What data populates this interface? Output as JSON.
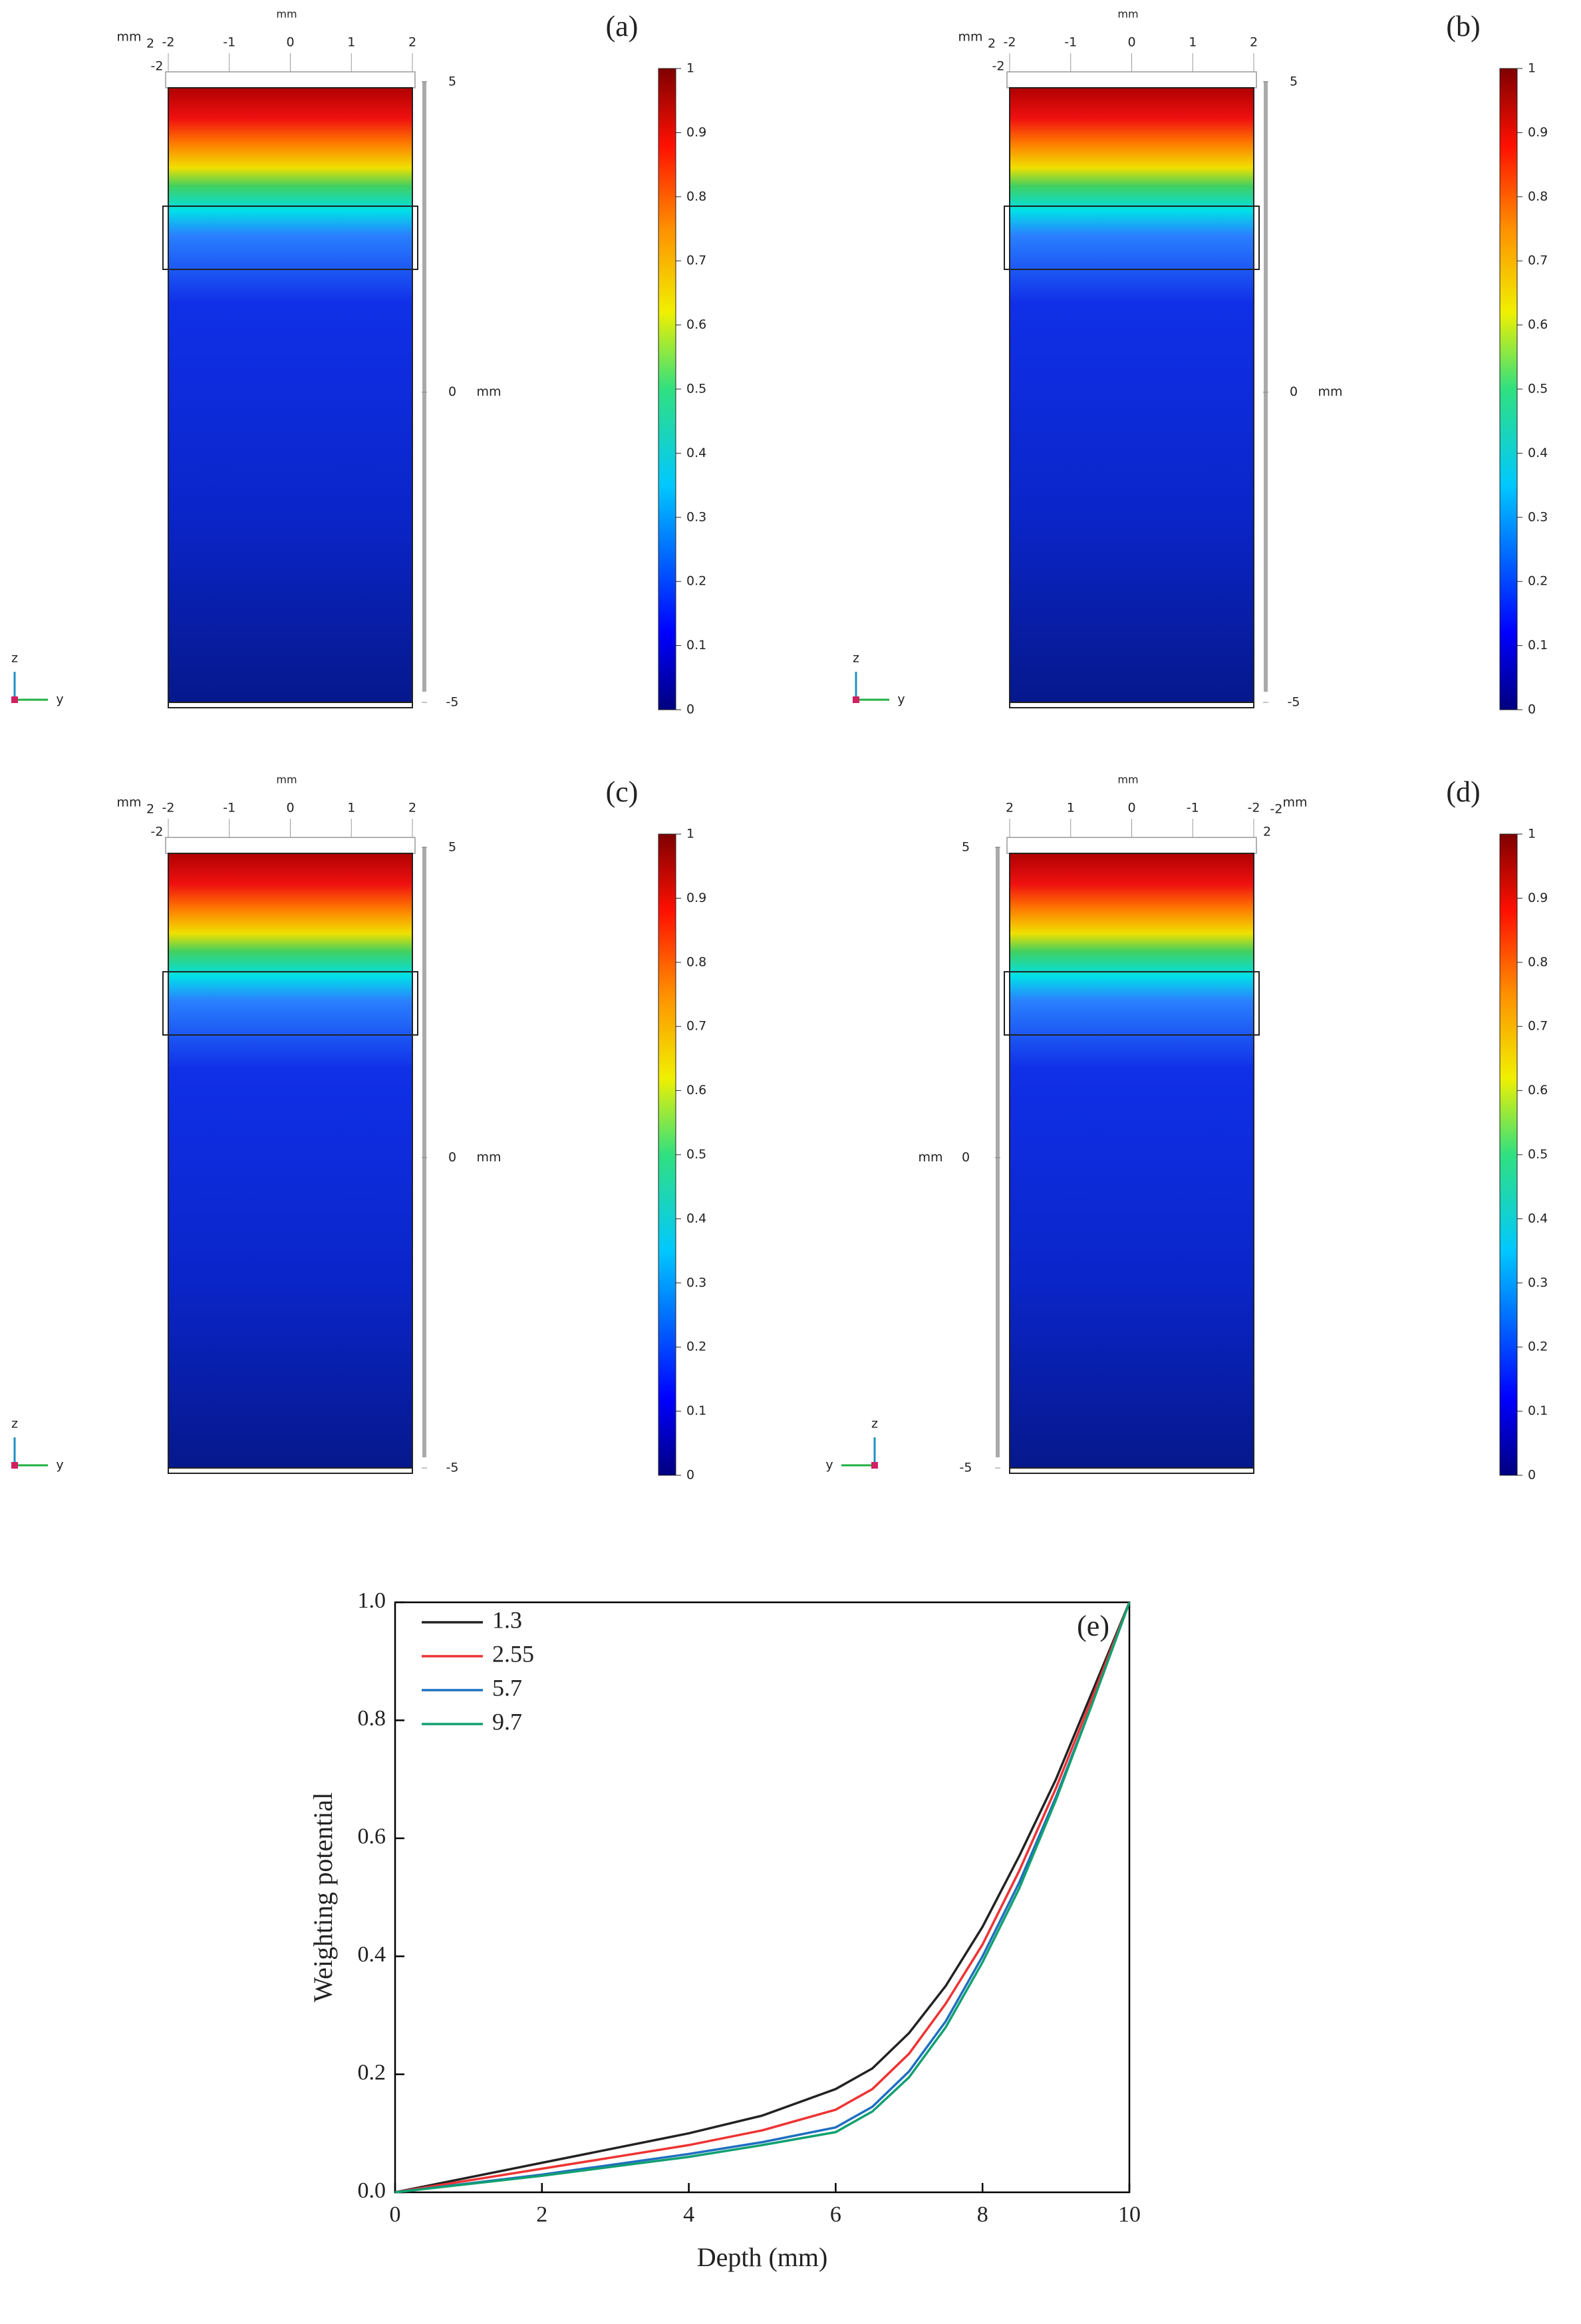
{
  "panels": [
    {
      "label": "(a)",
      "x_unit": "mm",
      "xlim": [
        -2,
        2
      ],
      "xticks": [
        -2,
        -1,
        0,
        1,
        2
      ],
      "corner": [
        "mm",
        2,
        -2
      ],
      "zlim": [
        -5,
        5
      ],
      "zticks": [
        -5,
        0,
        5
      ],
      "z_unit": "mm",
      "z_side": "right",
      "triad": [
        "z",
        "y"
      ],
      "colorbar": {
        "lim": [
          0,
          1
        ],
        "ticks": [
          0,
          0.1,
          0.2,
          0.3,
          0.4,
          0.5,
          0.6,
          0.7,
          0.8,
          0.9,
          1
        ]
      }
    },
    {
      "label": "(b)",
      "x_unit": "mm",
      "xlim": [
        -2,
        2
      ],
      "xticks": [
        -2,
        -1,
        0,
        1,
        2
      ],
      "corner": [
        "mm",
        2,
        -2
      ],
      "zlim": [
        -5,
        5
      ],
      "zticks": [
        -5,
        0,
        5
      ],
      "z_unit": "mm",
      "z_side": "right",
      "triad": [
        "z",
        "y"
      ],
      "colorbar": {
        "lim": [
          0,
          1
        ],
        "ticks": [
          0,
          0.1,
          0.2,
          0.3,
          0.4,
          0.5,
          0.6,
          0.7,
          0.8,
          0.9,
          1
        ]
      }
    },
    {
      "label": "(c)",
      "x_unit": "mm",
      "xlim": [
        -2,
        2
      ],
      "xticks": [
        -2,
        -1,
        0,
        1,
        2
      ],
      "corner": [
        "mm",
        2,
        -2
      ],
      "zlim": [
        -5,
        5
      ],
      "zticks": [
        -5,
        0,
        5
      ],
      "z_unit": "mm",
      "z_side": "right",
      "triad": [
        "z",
        "y"
      ],
      "colorbar": {
        "lim": [
          0,
          1
        ],
        "ticks": [
          0,
          0.1,
          0.2,
          0.3,
          0.4,
          0.5,
          0.6,
          0.7,
          0.8,
          0.9,
          1
        ]
      }
    },
    {
      "label": "(d)",
      "x_unit": "mm",
      "xlim": [
        2,
        -2
      ],
      "xticks": [
        2,
        1,
        0,
        -1,
        -2
      ],
      "corner": [
        "mm",
        -2,
        2
      ],
      "zlim": [
        -5,
        5
      ],
      "zticks": [
        -5,
        0,
        5
      ],
      "z_unit": "mm",
      "z_side": "left",
      "triad": [
        "z",
        "y"
      ],
      "colorbar": {
        "lim": [
          0,
          1
        ],
        "ticks": [
          0,
          0.1,
          0.2,
          0.3,
          0.4,
          0.5,
          0.6,
          0.7,
          0.8,
          0.9,
          1
        ]
      }
    }
  ],
  "chart_data": {
    "type": "line",
    "annotation": "(e)",
    "x_label": "Depth (mm)",
    "y_label": "Weighting potential",
    "x": [
      0,
      2,
      4,
      5,
      6,
      6.5,
      7,
      7.5,
      8,
      8.5,
      9,
      9.5,
      10
    ],
    "series": [
      {
        "name": "1.3",
        "color": "#222222",
        "values": [
          0,
          0.05,
          0.1,
          0.13,
          0.175,
          0.21,
          0.27,
          0.35,
          0.45,
          0.57,
          0.7,
          0.85,
          1
        ]
      },
      {
        "name": "2.55",
        "color": "#ee3333",
        "values": [
          0,
          0.04,
          0.08,
          0.105,
          0.14,
          0.175,
          0.235,
          0.32,
          0.42,
          0.545,
          0.685,
          0.84,
          1
        ]
      },
      {
        "name": "5.7",
        "color": "#1f6fc0",
        "values": [
          0,
          0.03,
          0.065,
          0.085,
          0.11,
          0.145,
          0.205,
          0.29,
          0.4,
          0.525,
          0.67,
          0.83,
          1
        ]
      },
      {
        "name": "9.7",
        "color": "#10a070",
        "values": [
          0,
          0.028,
          0.06,
          0.08,
          0.102,
          0.137,
          0.195,
          0.28,
          0.39,
          0.515,
          0.665,
          0.83,
          1
        ]
      }
    ],
    "xlim": [
      0,
      10
    ],
    "xticks": [
      0,
      2,
      4,
      6,
      8,
      10
    ],
    "ylim": [
      0,
      1
    ],
    "yticks": [
      {
        "value": 0,
        "label": "0.0"
      },
      0.2,
      0.4,
      0.6,
      0.8,
      {
        "value": 1,
        "label": "1.0"
      }
    ],
    "legend": "upper-left"
  }
}
